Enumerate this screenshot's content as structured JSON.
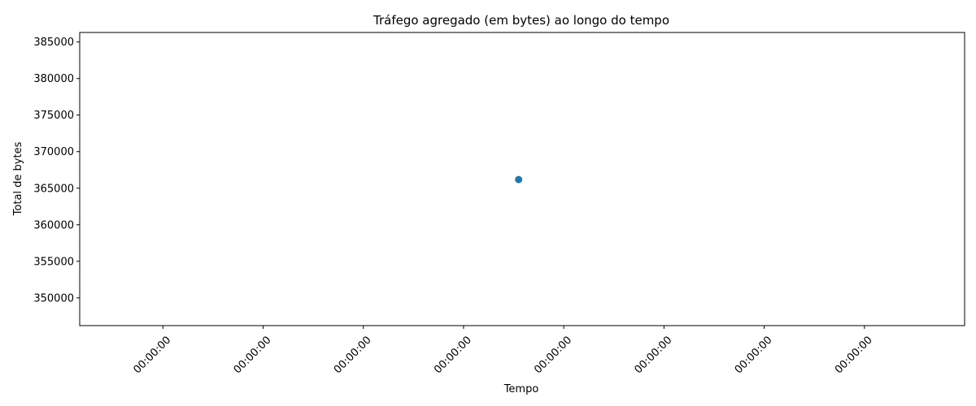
{
  "chart_data": {
    "type": "scatter",
    "title": "Tráfego agregado (em bytes) ao longo do tempo",
    "xlabel": "Tempo",
    "ylabel": "Total de bytes",
    "x_tick_labels": [
      "00:00:00",
      "00:00:00",
      "00:00:00",
      "00:00:00",
      "00:00:00",
      "00:00:00",
      "00:00:00",
      "00:00:00"
    ],
    "x_tick_values": [
      -0.3,
      -0.2,
      -0.1,
      0.0,
      0.1,
      0.2,
      0.3,
      0.4
    ],
    "xlim": [
      -0.383,
      0.5
    ],
    "y_ticks": [
      350000,
      355000,
      360000,
      365000,
      370000,
      375000,
      380000,
      385000
    ],
    "ylim": [
      346200,
      386300
    ],
    "grid": false,
    "series": [
      {
        "color": "#1f77b4",
        "points": [
          {
            "x": 0.055,
            "y": 366180
          }
        ]
      }
    ]
  }
}
